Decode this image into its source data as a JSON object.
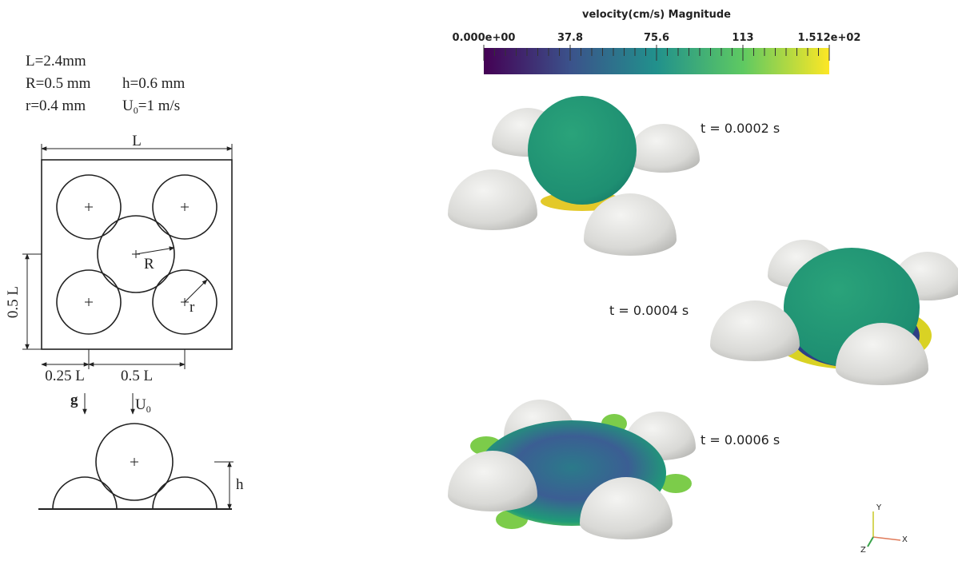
{
  "parameters": {
    "line1": "L=2.4mm",
    "line2a": "R=0.5 mm",
    "line2b": "h=0.6 mm",
    "line3a": "r=0.4 mm",
    "line3b_symbol": "U",
    "line3b_sub": "0",
    "line3b_rest": "=1 m/s"
  },
  "top_view": {
    "width_label": "L",
    "big_radius_label": "R",
    "small_radius_label": "r",
    "height_label": "0.5 L",
    "offset_label": "0.25 L",
    "spacing_label": "0.5 L"
  },
  "side_view": {
    "gravity_label": "g",
    "velocity_symbol": "U",
    "velocity_sub": "0",
    "height_label": "h"
  },
  "colorbar": {
    "title": "velocity(cm/s) Magnitude",
    "range": [
      0,
      151.2
    ],
    "ticks": [
      {
        "value": 0,
        "label": "0.000e+00"
      },
      {
        "value": 37.8,
        "label": "37.8"
      },
      {
        "value": 75.6,
        "label": "75.6"
      },
      {
        "value": 113.4,
        "label": "113"
      },
      {
        "value": 151.2,
        "label": "1.512e+02"
      }
    ]
  },
  "snapshots": [
    "t = 0.0002 s",
    "t = 0.0004 s",
    "t = 0.0006 s"
  ],
  "axes": {
    "y": "Y",
    "z": "Z",
    "x": "X"
  }
}
